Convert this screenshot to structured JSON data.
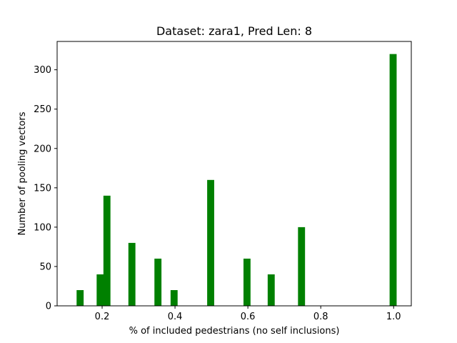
{
  "chart_data": {
    "type": "bar",
    "title": "Dataset: zara1, Pred Len: 8",
    "xlabel": "% of included pedestrians (no self inclusions)",
    "ylabel": "Number of pooling vectors",
    "xlim": [
      0.0765,
      1.0485
    ],
    "ylim": [
      0,
      336
    ],
    "xticks": [
      {
        "value": 0.2,
        "label": "0.2"
      },
      {
        "value": 0.4,
        "label": "0.4"
      },
      {
        "value": 0.6,
        "label": "0.6"
      },
      {
        "value": 0.8,
        "label": "0.8"
      },
      {
        "value": 1.0,
        "label": "1.0"
      }
    ],
    "yticks": [
      {
        "value": 0,
        "label": "0"
      },
      {
        "value": 50,
        "label": "50"
      },
      {
        "value": 100,
        "label": "100"
      },
      {
        "value": 150,
        "label": "150"
      },
      {
        "value": 200,
        "label": "200"
      },
      {
        "value": 250,
        "label": "250"
      },
      {
        "value": 300,
        "label": "300"
      }
    ],
    "bar_width": 0.0193,
    "grid": false,
    "bar_color": "#008000",
    "x": [
      0.1396,
      0.1946,
      0.2132,
      0.2817,
      0.3532,
      0.3975,
      0.4979,
      0.5976,
      0.664,
      0.7472,
      0.9986
    ],
    "values": [
      20,
      40,
      140,
      80,
      60,
      20,
      160,
      60,
      40,
      100,
      320
    ]
  }
}
